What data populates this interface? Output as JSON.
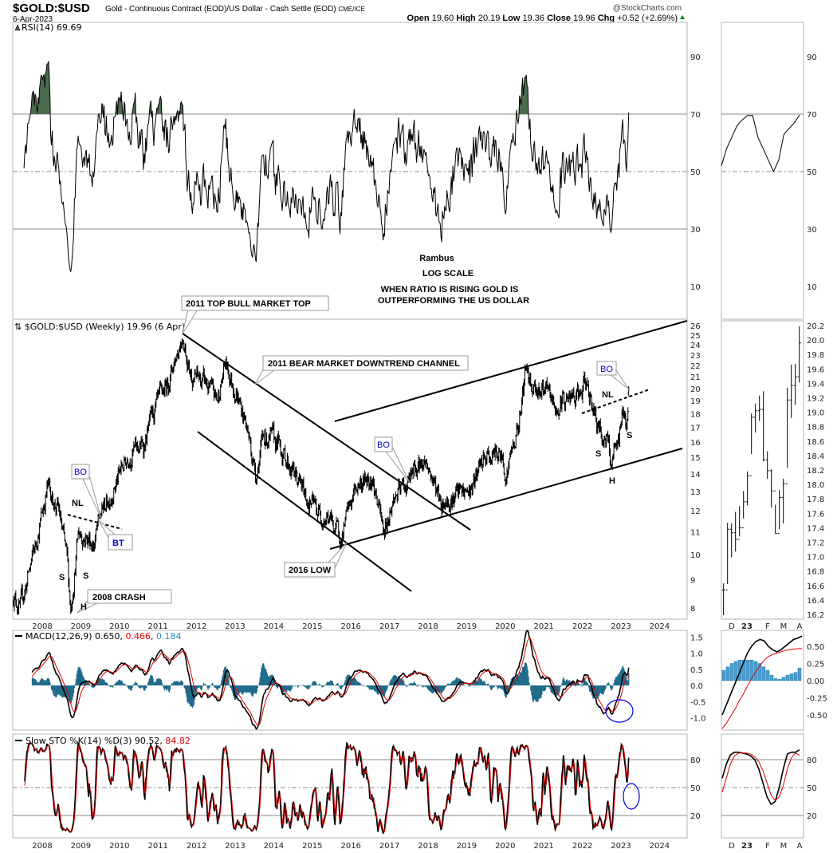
{
  "header": {
    "symbol": "$GOLD:$USD",
    "description": "Gold - Continuous Contract (EOD)/US Dollar - Cash Settle (EOD)",
    "exchange": "CME/ICE",
    "date": "6-Apr-2023",
    "watermark": "@StockCharts.com",
    "open_label": "Open",
    "open": "19.60",
    "high_label": "High",
    "high": "20.19",
    "low_label": "Low",
    "low": "19.36",
    "close_label": "Close",
    "close": "19.96",
    "chg_label": "Chg",
    "chg": "+0.52 (+2.69%)"
  },
  "colors": {
    "rsi_fill": "#4d6b4d",
    "signal": "#e00000",
    "histogram": "#1f6a8a",
    "annotation_blue": "#0000cc",
    "circle": "#0000dd"
  },
  "annotations": {
    "rambus": "Rambus",
    "log_scale": "LOG SCALE",
    "note_line1": "WHEN RATIO IS RISING GOLD IS",
    "note_line2": "OUTPERFORMING THE US DOLLAR",
    "top_2011": "2011 TOP BULL MARKET TOP",
    "bear_channel": "2011 BEAR MARKET DOWNTREND CHANNEL",
    "bo": "BO",
    "bt": "BT",
    "nl": "NL",
    "s": "S",
    "h": "H",
    "crash_2008": "2008 CRASH",
    "low_2016": "2016 LOW"
  },
  "chart_data": {
    "type": "multi-panel",
    "x_ticks": [
      "2008",
      "2009",
      "2010",
      "2011",
      "2012",
      "2013",
      "2014",
      "2015",
      "2016",
      "2017",
      "2018",
      "2019",
      "2020",
      "2021",
      "2022",
      "2023",
      "2024"
    ],
    "rsi": {
      "legend": "RSI(14) 69.69",
      "ticks": [
        90,
        70,
        50,
        30,
        10
      ],
      "ylim": [
        0,
        100
      ],
      "overbought": 70,
      "oversold": 30
    },
    "price": {
      "legend": "$GOLD:$USD (Weekly) 19.96 (6 Apr)",
      "scale": "log",
      "ylim": [
        7.7,
        26.3
      ],
      "ticks": [
        26,
        25,
        24,
        23,
        22,
        21,
        20,
        19,
        18,
        17,
        16,
        15,
        14,
        13,
        12,
        11,
        10,
        9,
        8
      ],
      "keypoints": [
        [
          2007.3,
          8.5
        ],
        [
          2007.5,
          8.0
        ],
        [
          2007.9,
          10.5
        ],
        [
          2008.2,
          13.3
        ],
        [
          2008.5,
          11.9
        ],
        [
          2008.7,
          9.8
        ],
        [
          2008.8,
          8.0
        ],
        [
          2009.0,
          11.0
        ],
        [
          2009.4,
          10.5
        ],
        [
          2009.6,
          11.9
        ],
        [
          2009.8,
          12.7
        ],
        [
          2010.3,
          15.2
        ],
        [
          2010.7,
          15.8
        ],
        [
          2010.9,
          17.6
        ],
        [
          2011.3,
          20.3
        ],
        [
          2011.7,
          25.2
        ],
        [
          2011.9,
          21.3
        ],
        [
          2012.3,
          20.4
        ],
        [
          2012.6,
          19.0
        ],
        [
          2012.8,
          22.1
        ],
        [
          2013.1,
          19.7
        ],
        [
          2013.4,
          16.6
        ],
        [
          2013.6,
          14.0
        ],
        [
          2013.8,
          16.4
        ],
        [
          2014.2,
          15.8
        ],
        [
          2014.6,
          14.0
        ],
        [
          2014.9,
          12.7
        ],
        [
          2015.2,
          12.0
        ],
        [
          2015.5,
          11.6
        ],
        [
          2015.8,
          10.7
        ],
        [
          2016.2,
          13.3
        ],
        [
          2016.6,
          14.0
        ],
        [
          2016.9,
          11.0
        ],
        [
          2017.2,
          12.7
        ],
        [
          2017.5,
          13.4
        ],
        [
          2017.8,
          14.4
        ],
        [
          2018.0,
          14.8
        ],
        [
          2018.4,
          12.5
        ],
        [
          2018.8,
          12.8
        ],
        [
          2019.2,
          13.1
        ],
        [
          2019.5,
          14.8
        ],
        [
          2019.9,
          15.3
        ],
        [
          2020.1,
          14.1
        ],
        [
          2020.4,
          17.1
        ],
        [
          2020.6,
          21.8
        ],
        [
          2020.8,
          20.3
        ],
        [
          2021.1,
          19.7
        ],
        [
          2021.4,
          18.2
        ],
        [
          2021.6,
          19.2
        ],
        [
          2021.9,
          19.0
        ],
        [
          2022.2,
          20.4
        ],
        [
          2022.5,
          16.7
        ],
        [
          2022.7,
          16.1
        ],
        [
          2022.8,
          14.7
        ],
        [
          2023.0,
          15.6
        ],
        [
          2023.1,
          18.3
        ],
        [
          2023.2,
          17.3
        ],
        [
          2023.27,
          19.96
        ]
      ],
      "last_bar": {
        "open": 19.6,
        "high": 20.19,
        "low": 19.36,
        "close": 19.96
      }
    },
    "macd": {
      "legend": "MACD(12,26,9)",
      "macd": "0.650",
      "signal": "0.466",
      "histogram": "0.184",
      "ticks": [
        "1.5",
        "1.0",
        "0.5",
        "0.0",
        "-0.5",
        "-1.0"
      ]
    },
    "stoch": {
      "legend": "Slow STO %K(14) %D(3)",
      "k": "90.52",
      "d": "84.82",
      "ticks": [
        80,
        50,
        20
      ]
    },
    "mini": {
      "x_ticks": [
        "D",
        "23",
        "F",
        "M",
        "A"
      ],
      "price_ticks": [
        "20.2",
        "20.0",
        "19.8",
        "19.6",
        "19.4",
        "19.2",
        "19.0",
        "18.8",
        "18.6",
        "18.4",
        "18.2",
        "18.0",
        "17.8",
        "17.6",
        "17.4",
        "17.2",
        "17.0",
        "16.8",
        "16.6",
        "16.4",
        "16.2"
      ],
      "bars": [
        [
          16.63,
          16.19,
          16.54
        ],
        [
          17.47,
          16.62,
          17.38
        ],
        [
          17.46,
          16.99,
          17.33
        ],
        [
          17.62,
          17.07,
          17.24
        ],
        [
          17.7,
          17.28,
          17.4
        ],
        [
          17.91,
          17.53,
          17.76
        ],
        [
          18.18,
          17.71,
          18.12
        ],
        [
          18.98,
          18.42,
          18.93
        ],
        [
          19.12,
          18.72,
          19.02
        ],
        [
          19.23,
          18.88,
          19.04
        ],
        [
          19.29,
          18.32,
          18.34
        ],
        [
          18.46,
          18.08,
          18.19
        ],
        [
          18.21,
          17.68,
          17.91
        ],
        [
          17.72,
          17.32,
          17.32
        ],
        [
          17.92,
          17.38,
          17.82
        ],
        [
          18.08,
          17.46,
          18.01
        ],
        [
          19.34,
          18.23,
          19.17
        ],
        [
          19.66,
          18.92,
          19.37
        ],
        [
          19.67,
          19.1,
          19.49
        ],
        [
          20.19,
          19.41,
          19.96
        ]
      ],
      "rsi": [
        52,
        58,
        62,
        66,
        68,
        69.5,
        69.5,
        62,
        58,
        54,
        50,
        54,
        63,
        65,
        67,
        69.69
      ],
      "macd_ticks": [
        "0.50",
        "0.25",
        "0.00",
        "-0.25",
        "-0.50"
      ],
      "macd": [
        -0.5,
        -0.35,
        -0.2,
        -0.05,
        0.1,
        0.25,
        0.4,
        0.5,
        0.57,
        0.6,
        0.58,
        0.5,
        0.45,
        0.42,
        0.45,
        0.5,
        0.55,
        0.6,
        0.62,
        0.65
      ],
      "signal": [
        -0.7,
        -0.62,
        -0.52,
        -0.42,
        -0.3,
        -0.2,
        -0.08,
        0.03,
        0.13,
        0.22,
        0.3,
        0.35,
        0.38,
        0.4,
        0.42,
        0.44,
        0.45,
        0.46,
        0.465,
        0.466
      ],
      "hist": [
        0.15,
        0.2,
        0.25,
        0.28,
        0.3,
        0.3,
        0.3,
        0.3,
        0.28,
        0.25,
        0.2,
        0.15,
        0.08,
        0.03,
        0.02,
        0.05,
        0.08,
        0.1,
        0.12,
        0.184
      ],
      "sto_k": [
        60,
        75,
        85,
        88,
        88,
        87,
        86,
        84,
        80,
        70,
        55,
        40,
        32,
        35,
        50,
        70,
        86,
        88,
        88,
        90.52
      ],
      "sto_d": [
        45,
        60,
        75,
        84,
        87,
        87,
        87,
        86,
        83,
        78,
        68,
        55,
        42,
        36,
        40,
        52,
        70,
        82,
        87,
        84.82
      ]
    }
  }
}
